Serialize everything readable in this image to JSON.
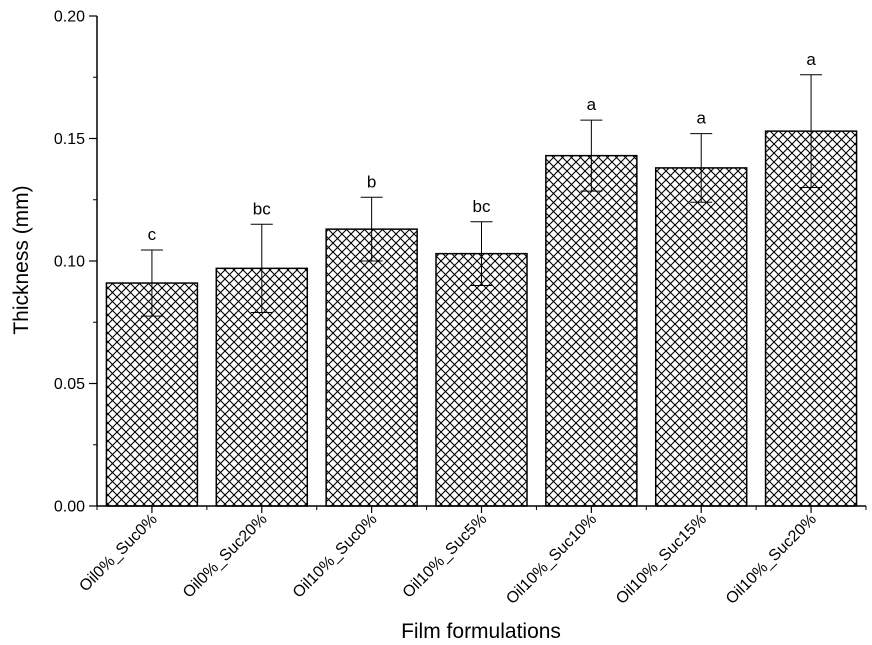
{
  "chart_data": {
    "type": "bar",
    "categories": [
      "Oil0%_Suc0%",
      "Oil0%_Suc20%",
      "Oil10%_Suc0%",
      "Oil10%_Suc5%",
      "Oil10%_Suc10%",
      "Oil10%_Suc15%",
      "Oil10%_Suc20%"
    ],
    "values": [
      0.091,
      0.097,
      0.113,
      0.103,
      0.143,
      0.138,
      0.153
    ],
    "errors": [
      0.0135,
      0.018,
      0.013,
      0.013,
      0.0145,
      0.014,
      0.023
    ],
    "significance_labels": [
      "c",
      "bc",
      "b",
      "bc",
      "a",
      "a",
      "a"
    ],
    "xlabel": "Film formulations",
    "ylabel": "Thickness (mm)",
    "ylim": [
      0,
      0.2
    ],
    "yticks": [
      0.0,
      0.05,
      0.1,
      0.15,
      0.2
    ],
    "ytick_labels": [
      "0.00",
      "0.05",
      "0.10",
      "0.15",
      "0.20"
    ],
    "bar_fill": "crosshatch",
    "bar_color": "#000000",
    "grid": false,
    "legend": "none"
  }
}
